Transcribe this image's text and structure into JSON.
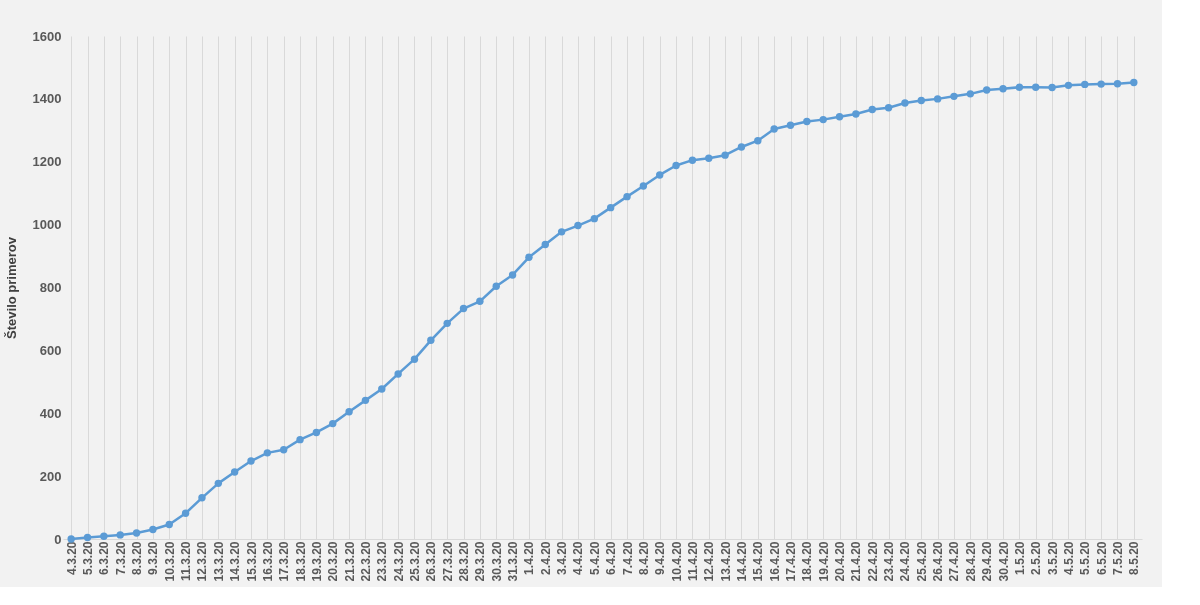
{
  "chart_data": {
    "type": "line",
    "ylabel": "Število primerov",
    "categories": [
      "4.3.20",
      "5.3.20",
      "6.3.20",
      "7.3.20",
      "8.3.20",
      "9.3.20",
      "10.3.20",
      "11.3.20",
      "12.3.20",
      "13.3.20",
      "14.3.20",
      "15.3.20",
      "16.3.20",
      "17.3.20",
      "18.3.20",
      "19.3.20",
      "20.3.20",
      "21.3.20",
      "22.3.20",
      "23.3.20",
      "24.3.20",
      "25.3.20",
      "26.3.20",
      "27.3.20",
      "28.3.20",
      "29.3.20",
      "30.3.20",
      "31.3.20",
      "1.4.20",
      "2.4.20",
      "3.4.20",
      "4.4.20",
      "5.4.20",
      "6.4.20",
      "7.4.20",
      "8.4.20",
      "9.4.20",
      "10.4.20",
      "11.4.20",
      "12.4.20",
      "13.4.20",
      "14.4.20",
      "15.4.20",
      "16.4.20",
      "17.4.20",
      "18.4.20",
      "19.4.20",
      "20.4.20",
      "21.4.20",
      "22.4.20",
      "23.4.20",
      "24.4.20",
      "25.4.20",
      "26.4.20",
      "27.4.20",
      "28.4.20",
      "29.4.20",
      "30.4.20",
      "1.5.20",
      "2.5.20",
      "3.5.20",
      "4.5.20",
      "5.5.20",
      "6.5.20",
      "7.5.20",
      "8.5.20"
    ],
    "series": [
      {
        "color": "#5b9bd5",
        "values": [
          0,
          5,
          9,
          13,
          19,
          30,
          46,
          82,
          131,
          177,
          213,
          248,
          274,
          284,
          316,
          339,
          367,
          405,
          441,
          477,
          525,
          572,
          632,
          686,
          733,
          756,
          804,
          840,
          896,
          937,
          977,
          997,
          1019,
          1054,
          1089,
          1123,
          1158,
          1188,
          1205,
          1211,
          1221,
          1247,
          1267,
          1304,
          1316,
          1328,
          1334,
          1343,
          1352,
          1366,
          1372,
          1387,
          1395,
          1400,
          1408,
          1416,
          1428,
          1432,
          1437,
          1437,
          1436,
          1443,
          1446,
          1447,
          1448,
          1452
        ]
      }
    ],
    "ylim": [
      0,
      1600
    ],
    "yticks": [
      0,
      200,
      400,
      600,
      800,
      1000,
      1200,
      1400,
      1600
    ],
    "grid": "x",
    "legend": false,
    "marker": "circle",
    "line_style": "solid"
  }
}
